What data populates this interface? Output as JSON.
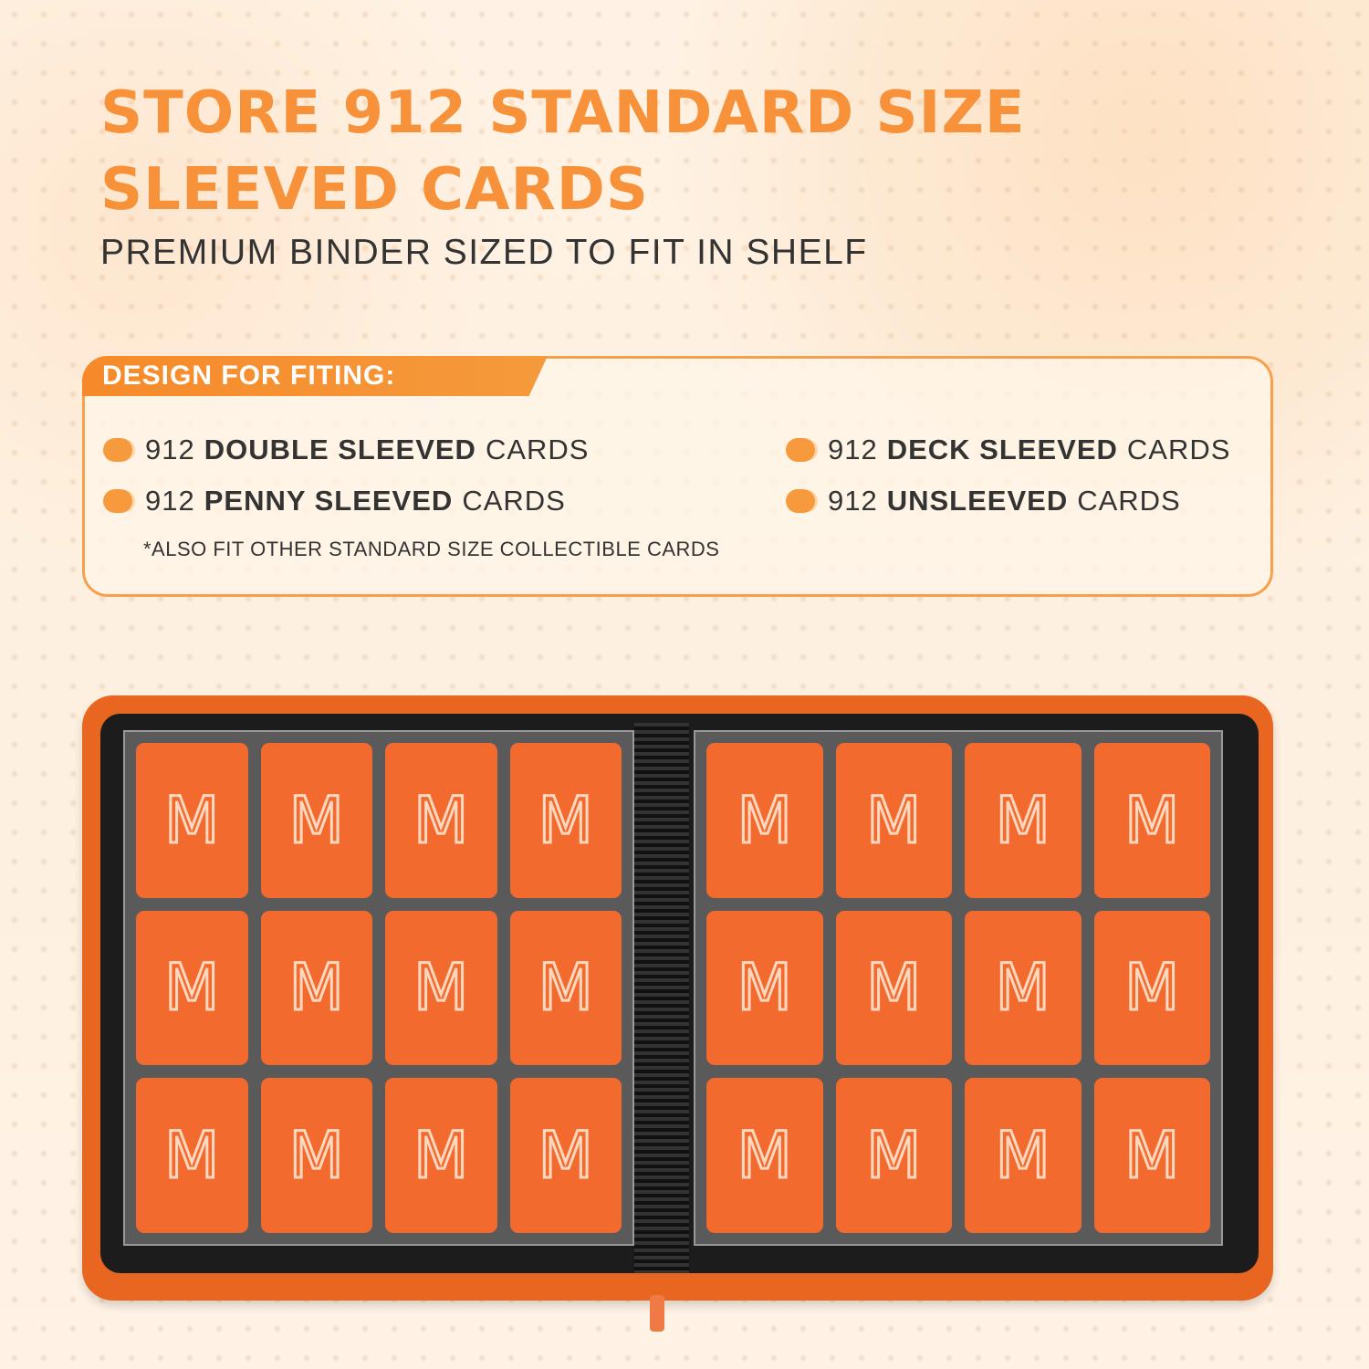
{
  "header": {
    "title_line1": "STORE 912 STANDARD SIZE",
    "title_line2": "SLEEVED CARDS",
    "subtitle": "PREMIUM BINDER SIZED TO FIT IN SHELF"
  },
  "features": {
    "tag": "DESIGN FOR FITING:",
    "items": [
      {
        "num": "912",
        "bold": "DOUBLE SLEEVED",
        "rest": "CARDS"
      },
      {
        "num": "912",
        "bold": "PENNY SLEEVED",
        "rest": "CARDS"
      },
      {
        "num": "912",
        "bold": "DECK SLEEVED",
        "rest": "CARDS"
      },
      {
        "num": "912",
        "bold": "UNSLEEVED",
        "rest": "CARDS"
      }
    ],
    "note": "*ALSO FIT OTHER STANDARD SIZE COLLECTIBLE CARDS"
  },
  "binder": {
    "card_logo": "M",
    "cards_per_page": 12,
    "pages_visible": 2
  },
  "colors": {
    "accent": "#f7923a",
    "binder": "#e8661f",
    "card": "#f26a2e"
  }
}
